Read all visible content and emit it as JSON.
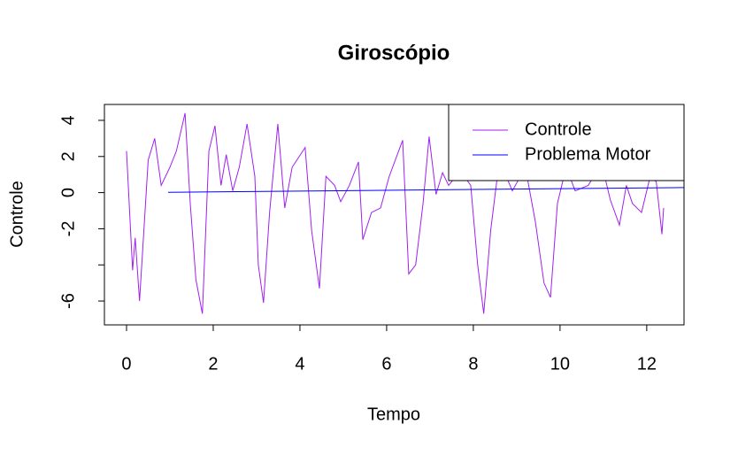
{
  "chart_data": {
    "type": "line",
    "title": "Giroscópio",
    "xlabel": "Tempo",
    "ylabel": "Controle",
    "xlim": [
      -0.51,
      12.86
    ],
    "ylim": [
      -7.32,
      4.88
    ],
    "xticks": [
      0,
      2,
      4,
      6,
      8,
      10,
      12
    ],
    "yticks": [
      4,
      2,
      0,
      -2,
      {
        "value": -4,
        "label": null
      },
      -6
    ],
    "legend": "top-right",
    "series": [
      {
        "name": "Controle",
        "color": "#a020f0",
        "x": [
          0,
          0.14,
          0.2,
          0.3,
          0.5,
          0.65,
          0.8,
          1.0,
          1.15,
          1.35,
          1.47,
          1.6,
          1.75,
          1.9,
          2.04,
          2.18,
          2.3,
          2.45,
          2.6,
          2.78,
          2.96,
          3.04,
          3.16,
          3.3,
          3.49,
          3.65,
          3.82,
          4.12,
          4.27,
          4.45,
          4.6,
          4.8,
          4.94,
          5.14,
          5.35,
          5.45,
          5.65,
          5.86,
          6.06,
          6.37,
          6.51,
          6.67,
          6.84,
          6.98,
          7.14,
          7.29,
          7.43,
          7.7,
          7.94,
          8.1,
          8.24,
          8.4,
          8.6,
          8.9,
          9.2,
          9.43,
          9.63,
          9.78,
          9.94,
          10.14,
          10.35,
          10.65,
          10.96,
          11.16,
          11.37,
          11.53,
          11.67,
          11.88,
          12.08,
          12.22,
          12.35,
          12.39
        ],
        "values": [
          2.3,
          -4.3,
          -2.5,
          -6.0,
          1.8,
          3.0,
          0.4,
          1.4,
          2.3,
          4.4,
          -0.6,
          -4.8,
          -6.7,
          2.3,
          3.7,
          0.4,
          2.1,
          0.1,
          1.4,
          3.8,
          0.9,
          -4.0,
          -6.1,
          -1.1,
          3.8,
          -0.85,
          1.4,
          2.5,
          -2.1,
          -5.3,
          0.9,
          0.4,
          -0.5,
          0.4,
          1.7,
          -2.6,
          -1.1,
          -0.85,
          0.9,
          2.9,
          -4.5,
          -4.0,
          -0.6,
          3.1,
          -0.1,
          1.1,
          0.4,
          1.2,
          0.4,
          -4.0,
          -6.7,
          -2.1,
          1.8,
          0.1,
          1.4,
          -1.6,
          -5.0,
          -5.8,
          -0.6,
          1.4,
          0.1,
          0.4,
          1.6,
          -0.4,
          -1.8,
          0.4,
          -0.6,
          -1.1,
          0.9,
          0.6,
          -2.3,
          -0.85
        ]
      },
      {
        "name": "Problema Motor",
        "color": "#0000ff",
        "x": [
          0.96,
          12.86
        ],
        "values": [
          0.02,
          0.28
        ]
      }
    ]
  }
}
